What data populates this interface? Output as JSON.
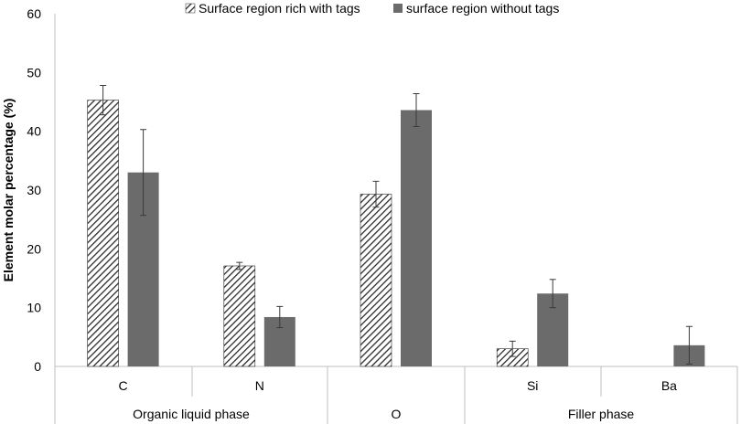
{
  "chart_data": {
    "type": "bar",
    "categories": [
      "C",
      "N",
      "O",
      "Si",
      "Ba"
    ],
    "group_labels": [
      {
        "label": "Organic liquid phase",
        "categories": [
          "C",
          "N"
        ]
      },
      {
        "label": "O",
        "categories": [
          "O"
        ]
      },
      {
        "label": "Filler phase",
        "categories": [
          "Si",
          "Ba"
        ]
      }
    ],
    "series": [
      {
        "name": "Surface region rich with tags",
        "values": [
          45.3,
          17.1,
          29.3,
          3.0,
          0.0
        ],
        "errors": [
          2.5,
          0.6,
          2.2,
          1.3,
          0.0
        ],
        "fill": "hatched"
      },
      {
        "name": "surface region without tags",
        "values": [
          33.0,
          8.4,
          43.6,
          12.4,
          3.6
        ],
        "errors": [
          7.3,
          1.8,
          2.8,
          2.4,
          3.2
        ],
        "fill": "solid"
      }
    ],
    "ylabel": "Element molar percentage (%)",
    "ylim": [
      0,
      60
    ],
    "yticks": [
      0,
      10,
      20,
      30,
      40,
      50,
      60
    ],
    "grid": false,
    "legend_position": "top-center"
  },
  "colors": {
    "bar_solid": "#6b6b6b",
    "hatch_line": "#2a2a2a",
    "axis": "#bfbfbf",
    "error_bar": "#3a3a3a"
  }
}
